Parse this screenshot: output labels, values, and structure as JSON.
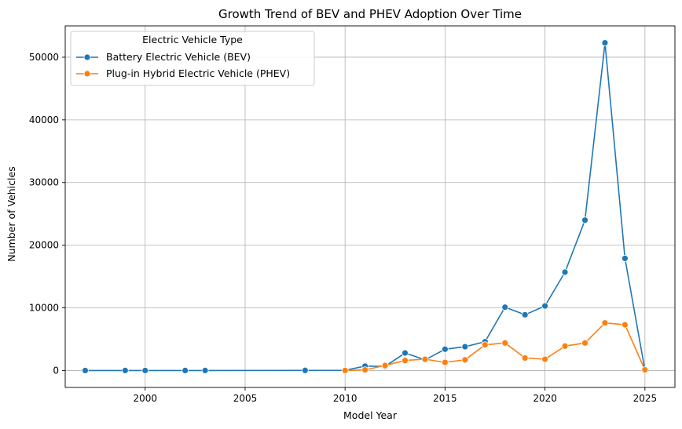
{
  "chart_data": {
    "type": "line",
    "title": "Growth Trend of BEV and PHEV Adoption Over Time",
    "xlabel": "Model Year",
    "ylabel": "Number of Vehicles",
    "xlim": [
      1996,
      2026.5
    ],
    "ylim": [
      -2700,
      55000
    ],
    "xticks": [
      2000,
      2005,
      2010,
      2015,
      2020,
      2025
    ],
    "yticks": [
      0,
      10000,
      20000,
      30000,
      40000,
      50000
    ],
    "grid": true,
    "legend": {
      "title": "Electric Vehicle Type",
      "placement": "top-left"
    },
    "series": [
      {
        "name": "Battery Electric Vehicle (BEV)",
        "color": "#1f77b4",
        "x": [
          1997,
          1999,
          2000,
          2002,
          2003,
          2008,
          2010,
          2011,
          2012,
          2013,
          2014,
          2015,
          2016,
          2017,
          2018,
          2019,
          2020,
          2021,
          2022,
          2023,
          2024,
          2025
        ],
        "y": [
          1,
          5,
          7,
          2,
          6,
          20,
          25,
          700,
          650,
          2800,
          1700,
          3400,
          3800,
          4600,
          10100,
          8900,
          10300,
          15700,
          24000,
          52300,
          17900,
          100
        ]
      },
      {
        "name": "Plug-in Hybrid Electric Vehicle (PHEV)",
        "color": "#ff7f0e",
        "x": [
          2010,
          2011,
          2012,
          2013,
          2014,
          2015,
          2016,
          2017,
          2018,
          2019,
          2020,
          2021,
          2022,
          2023,
          2024,
          2025
        ],
        "y": [
          5,
          100,
          800,
          1600,
          1800,
          1300,
          1700,
          4100,
          4400,
          2000,
          1800,
          3900,
          4400,
          7600,
          7300,
          100
        ]
      }
    ]
  }
}
